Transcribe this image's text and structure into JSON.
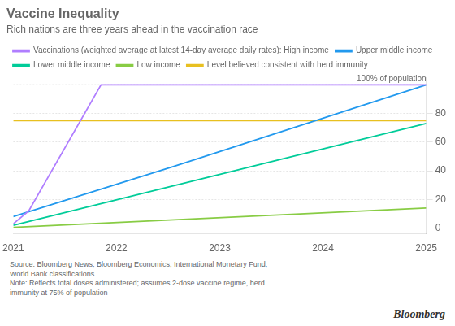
{
  "chart_data": {
    "type": "line",
    "title": "Vaccine Inequality",
    "subtitle": "Rich nations are three years ahead in the vaccination race",
    "series": [
      {
        "name": "Vaccinations (weighted average at latest 14-day average daily rates): High income",
        "color": "#b07eff",
        "x": [
          2021.0,
          2021.15,
          2021.85,
          2025.0
        ],
        "values": [
          3,
          12,
          100,
          100
        ]
      },
      {
        "name": "Upper middle income",
        "color": "#2299ee",
        "x": [
          2021.0,
          2022.55,
          2025.0
        ],
        "values": [
          8,
          43,
          100
        ]
      },
      {
        "name": "Lower middle income",
        "color": "#00cc99",
        "x": [
          2021.0,
          2025.0
        ],
        "values": [
          2,
          73
        ]
      },
      {
        "name": "Low income",
        "color": "#88cc44",
        "x": [
          2021.0,
          2025.0
        ],
        "values": [
          0.5,
          14
        ]
      }
    ],
    "reference_lines": [
      {
        "name": "Level believed consistent with herd immunity",
        "value": 75,
        "color": "#e8c020"
      },
      {
        "value": 100,
        "color": "#888888",
        "line_style": "dotted"
      }
    ],
    "annotations": [
      {
        "text": "100% of population",
        "x": 2025,
        "y": 101
      }
    ],
    "source": "Source: Bloomberg News, Bloomberg Economics, International Monetary Fund,\nWorld Bank classifications\nNote: Reflects total doses administered; assumes 2-dose vaccine regime, herd\nimmunity at 75% of population",
    "credit": "Bloomberg",
    "xlim": [
      2021,
      2025
    ],
    "xticks": [
      2021,
      2022,
      2023,
      2024,
      2025
    ],
    "ylim": [
      -4,
      105
    ],
    "yticks": [
      0,
      20,
      40,
      60,
      80
    ],
    "grid": "y",
    "legend": "top"
  }
}
